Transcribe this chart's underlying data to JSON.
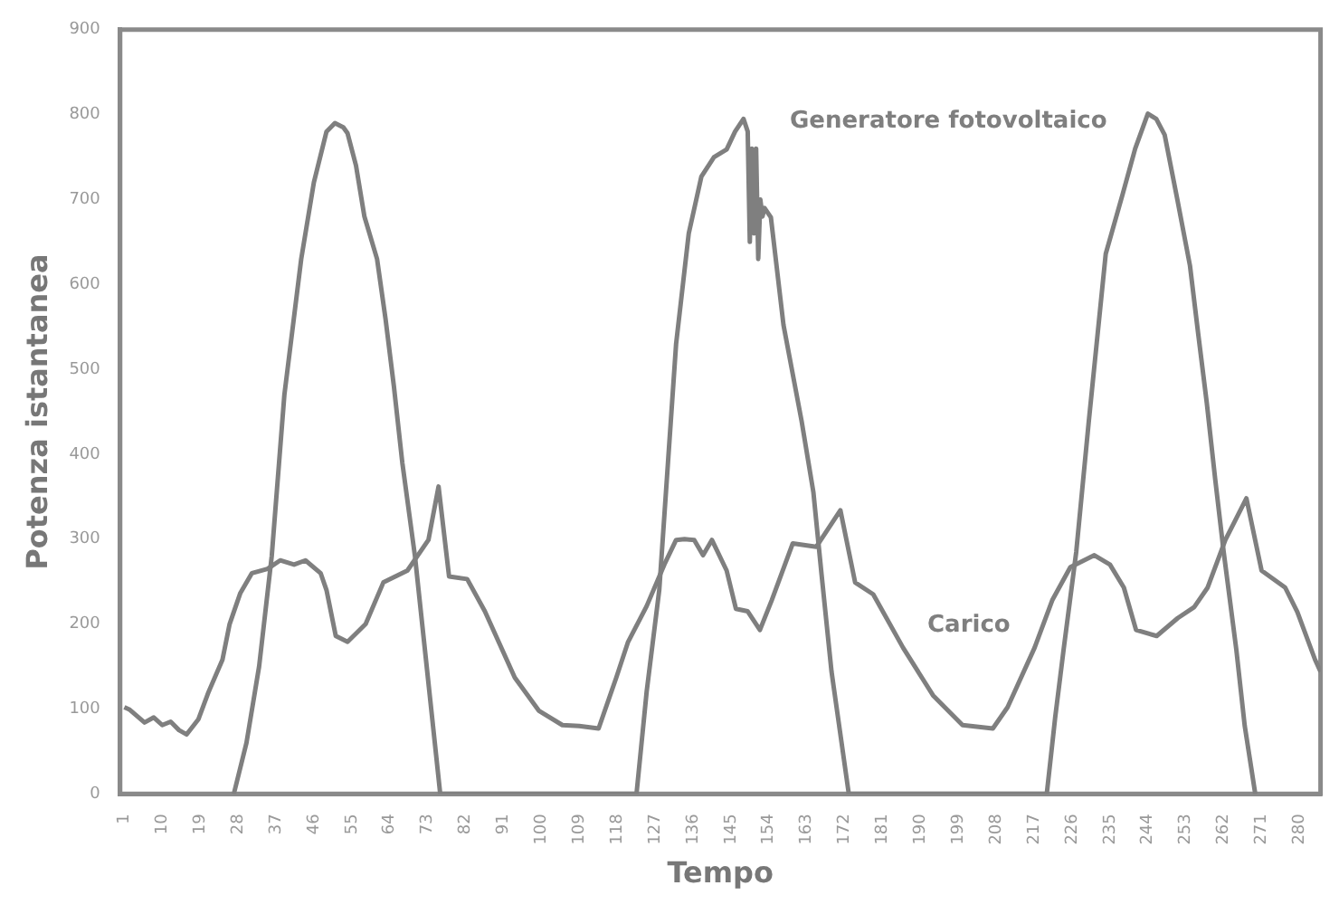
{
  "chart_data": {
    "type": "line",
    "xlabel": "Tempo",
    "ylabel": "Potenza istantanea",
    "xlim": [
      0,
      285
    ],
    "ylim": [
      0,
      900
    ],
    "yticks": [
      0,
      100,
      200,
      300,
      400,
      500,
      600,
      700,
      800,
      900
    ],
    "xticks": [
      1,
      10,
      19,
      28,
      37,
      46,
      55,
      64,
      73,
      82,
      91,
      100,
      109,
      118,
      127,
      136,
      145,
      154,
      163,
      172,
      181,
      190,
      199,
      208,
      217,
      226,
      235,
      244,
      253,
      262,
      271,
      280
    ],
    "grid": false,
    "legend": false,
    "marker": "none",
    "line_style": "solid",
    "series": [
      {
        "name": "Generatore fotovoltaico",
        "color": "#7f7f7f",
        "x": [
          27,
          30,
          33,
          36,
          39,
          43,
          46,
          49,
          51,
          53,
          54,
          56,
          58,
          61,
          63,
          65,
          67,
          70,
          73,
          76,
          122.6,
          125,
          128,
          132,
          135,
          138,
          141,
          144,
          146,
          148,
          149,
          149.5,
          150,
          150.5,
          151,
          151.5,
          152,
          152.5,
          153,
          154.5,
          157.5,
          161.8,
          164.6,
          166.5,
          168.9,
          173,
          220,
          222,
          224,
          227,
          230,
          234,
          238,
          241,
          244,
          246,
          248,
          251,
          254,
          256,
          258,
          260,
          262,
          265,
          267,
          269.5
        ],
        "values": [
          0,
          60,
          150,
          280,
          470,
          630,
          720,
          780,
          790,
          785,
          778,
          740,
          680,
          630,
          560,
          480,
          390,
          280,
          140,
          0,
          0,
          120,
          240,
          530,
          660,
          727,
          750,
          759,
          780,
          795,
          780,
          650,
          760,
          660,
          760,
          630,
          700,
          680,
          690,
          679,
          552,
          439,
          355,
          260,
          144,
          0,
          0,
          90,
          170,
          285,
          440,
          636,
          706,
          760,
          801,
          795,
          776,
          700,
          622,
          540,
          460,
          370,
          285,
          170,
          80,
          0
        ]
      },
      {
        "name": "Carico",
        "color": "#7f7f7f",
        "x": [
          1,
          2.3,
          5.8,
          8,
          10,
          12,
          14,
          15.8,
          18.6,
          21,
          24.3,
          26,
          28.5,
          31.3,
          35,
          38,
          41.3,
          44,
          47.6,
          49,
          51.2,
          54,
          58.3,
          62.5,
          68.2,
          73.2,
          75.6,
          78.1,
          82.4,
          86.6,
          93.7,
          99.4,
          105,
          109,
          113.6,
          117.8,
          120.6,
          125,
          129.2,
          132,
          134,
          136.3,
          138.4,
          140.5,
          144,
          146.2,
          149,
          151.9,
          154.7,
          159.7,
          165.3,
          171,
          174.5,
          178.8,
          185.9,
          193,
          200,
          207.2,
          210.7,
          217.1,
          221.3,
          225.6,
          231.3,
          235,
          238.3,
          241.2,
          246.1,
          251.1,
          255,
          258.2,
          262.4,
          267.4,
          271,
          276.6,
          279.5,
          283.7,
          285
        ],
        "values": [
          102,
          99,
          84,
          90,
          81,
          85,
          75,
          70,
          88,
          120,
          158,
          200,
          236,
          260,
          265,
          275,
          270,
          275,
          260,
          240,
          186,
          179,
          200,
          249,
          263,
          299,
          362,
          256,
          253,
          215,
          137,
          98,
          81,
          80,
          77,
          137,
          179,
          221,
          270,
          299,
          300,
          299,
          281,
          299,
          263,
          218,
          215,
          193,
          228,
          295,
          291,
          334,
          249,
          235,
          172,
          116,
          81,
          77,
          102,
          172,
          228,
          267,
          281,
          270,
          243,
          193,
          186,
          207,
          220,
          243,
          299,
          348,
          263,
          243,
          214,
          158,
          144
        ]
      }
    ]
  }
}
